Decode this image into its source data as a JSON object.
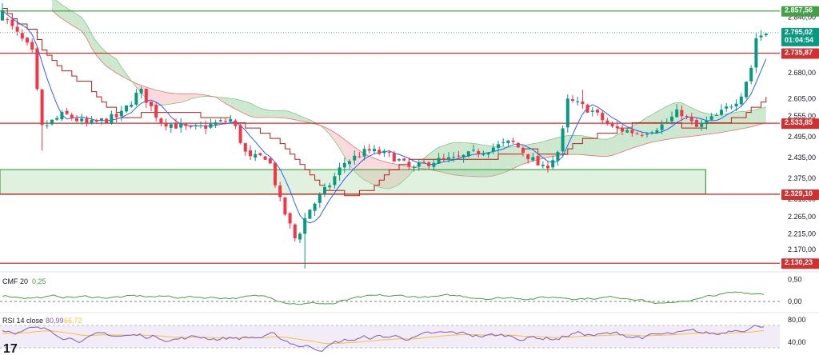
{
  "colors": {
    "bull": "#089981",
    "bear": "#f23645",
    "tenkan": "#2962ff",
    "kijun": "#b71c1c",
    "cloud_up": "#a5d6a7",
    "cloud_down": "#f8bbc0",
    "level_red": "#d32f2f",
    "level_green": "#43a047",
    "tag_teal": "#089981",
    "tag_dark": "#131722",
    "cmf_line": "#43a047",
    "rsi_line": "#7e57c2",
    "rsi_ma": "#fbc02d",
    "rsi_band": "#ede7f6"
  },
  "chart_data": {
    "type": "candlestick",
    "y_range": [
      2110,
      2880
    ],
    "y_ticks": [
      "2.840,00",
      "2.680,00",
      "2.605,00",
      "2.555,00",
      "2.495,00",
      "2.435,00",
      "2.375,00",
      "2.315,00",
      "2.265,00",
      "2.215,00",
      "2.170,00"
    ],
    "y_tick_values": [
      2840,
      2680,
      2605,
      2555,
      2495,
      2435,
      2375,
      2315,
      2265,
      2215,
      2170
    ],
    "current_price": {
      "value": 2795.02,
      "label": "2.795,02",
      "countdown": "01:04:54"
    },
    "levels": [
      {
        "value": 2857.56,
        "label": "2.857,56",
        "color": "green"
      },
      {
        "value": 2735.87,
        "label": "2.735,87",
        "color": "red"
      },
      {
        "value": 2533.85,
        "label": "2.533,85",
        "color": "red"
      },
      {
        "value": 2329.1,
        "label": "2.329,10",
        "color": "red"
      },
      {
        "value": 2130.23,
        "label": "2.130,23",
        "color": "red"
      }
    ],
    "zone": {
      "from": 2330,
      "to": 2400,
      "x_end_fraction": 0.905
    },
    "cmf": {
      "label": "CMF 20",
      "value": "0,25",
      "ticks": [
        "0,50",
        "0,00"
      ],
      "tick_values": [
        0.5,
        0.0
      ],
      "range": [
        -0.2,
        0.6
      ]
    },
    "rsi": {
      "label": "RSI 14 close",
      "value": "80,99",
      "ma_value": "66,72",
      "ticks": [
        "80,00",
        "40,00"
      ],
      "tick_values": [
        80,
        40
      ],
      "range": [
        20,
        90
      ]
    }
  },
  "logo_text": "17"
}
